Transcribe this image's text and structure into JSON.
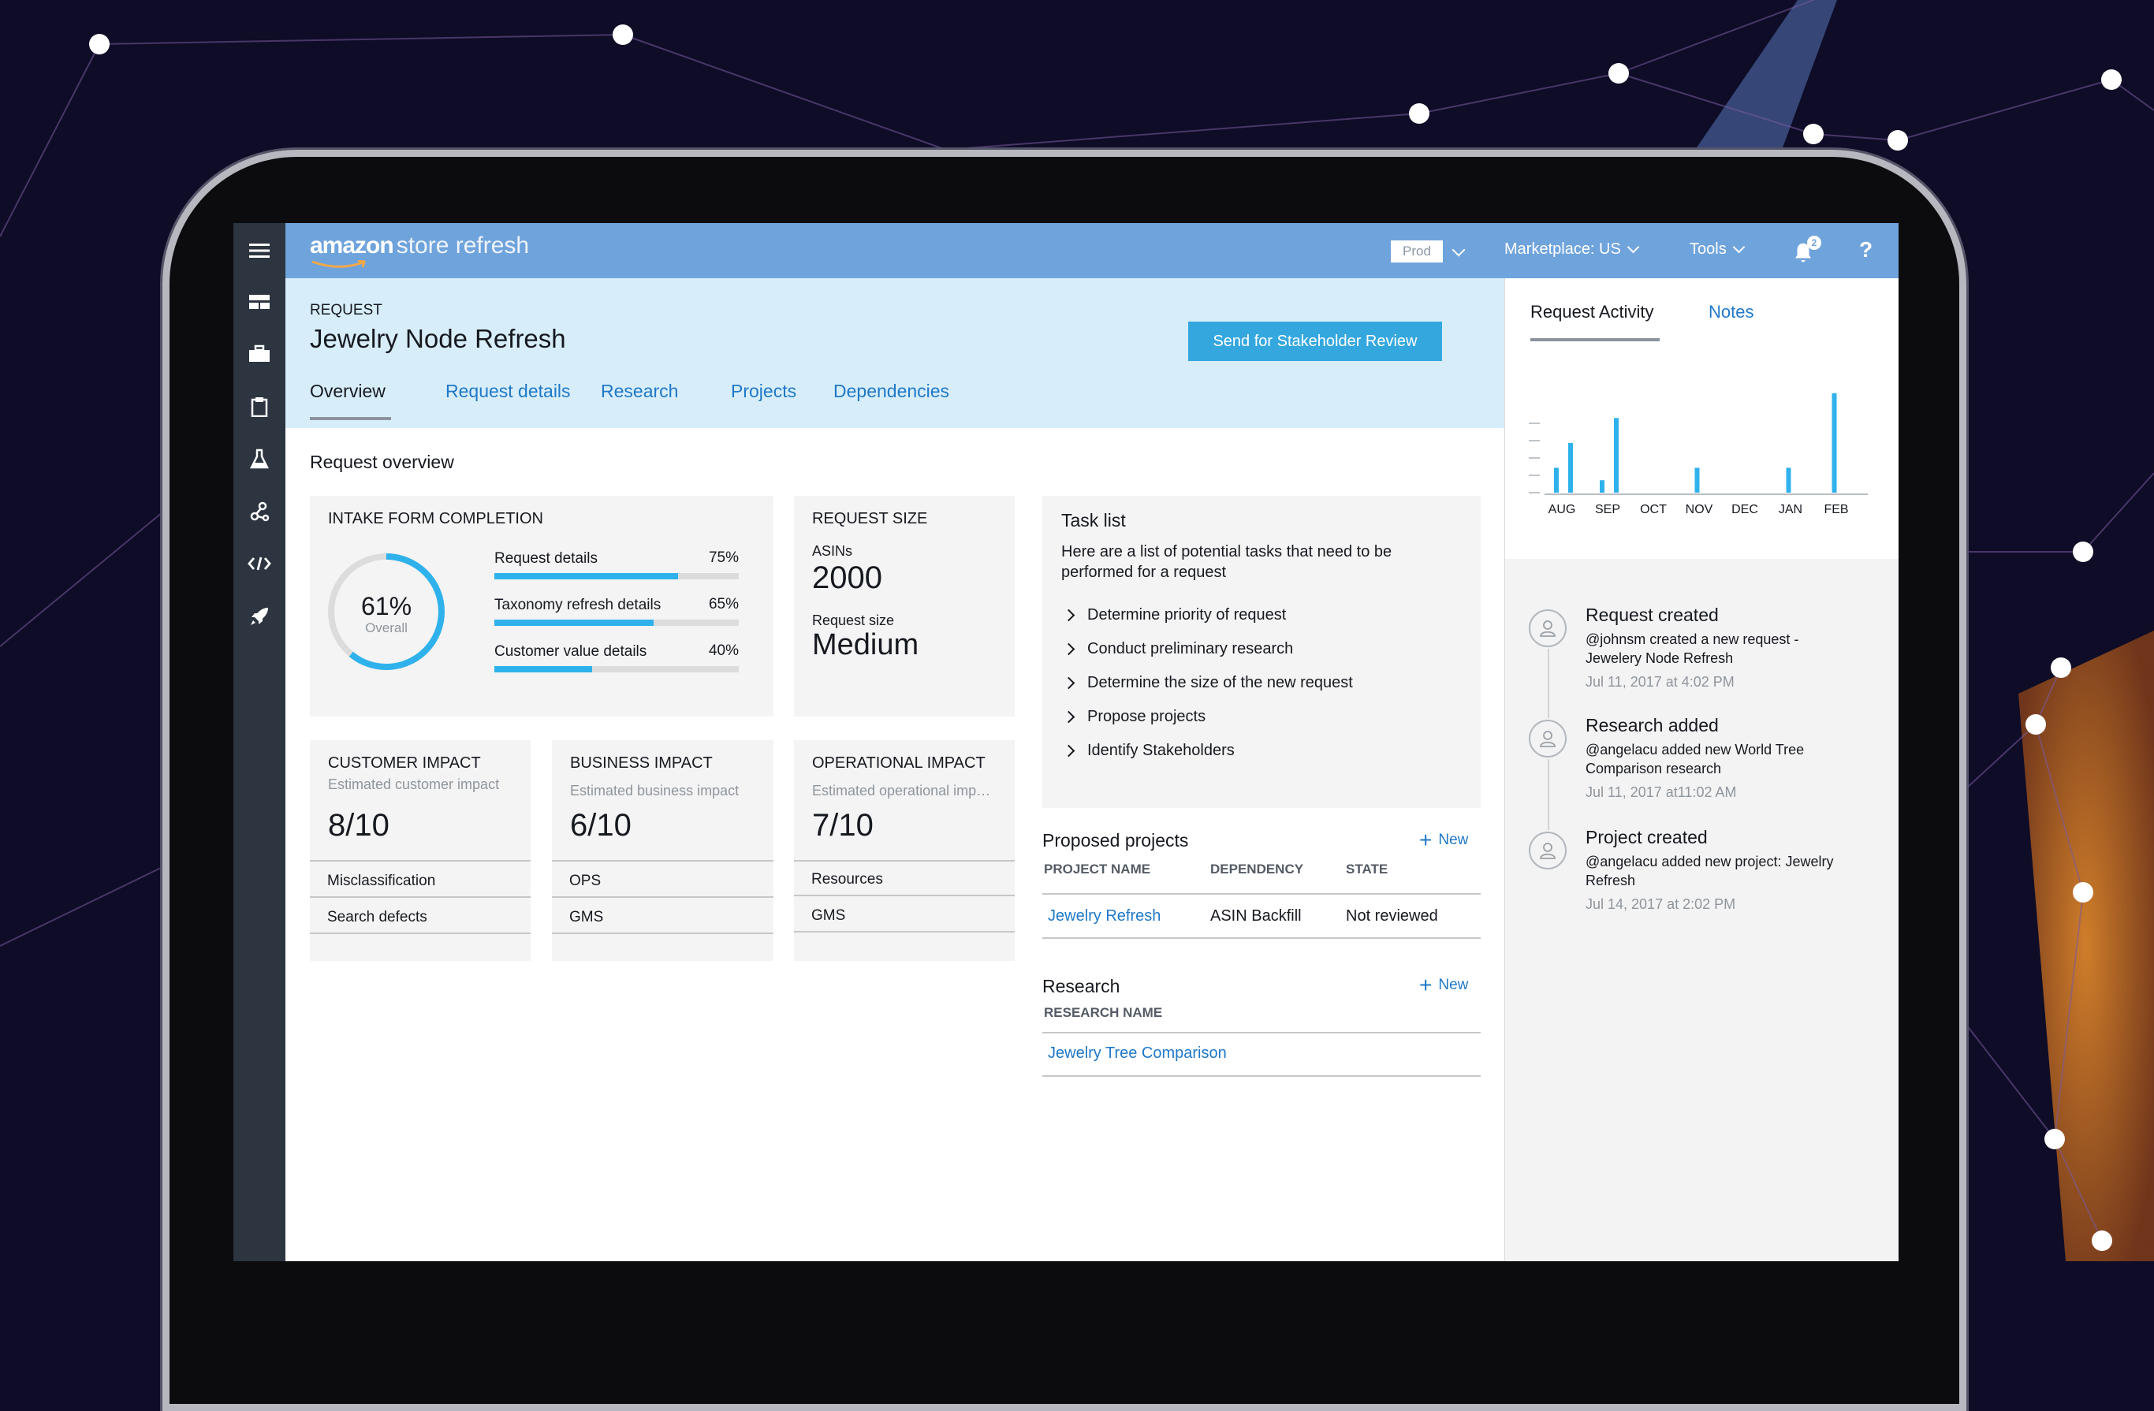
{
  "brand": {
    "logo_text": "amazon",
    "app_name": "store refresh"
  },
  "topnav": {
    "env": "Prod",
    "marketplace": "Marketplace: US",
    "tools": "Tools",
    "notif_count": "2",
    "help": "?"
  },
  "rail_icons": [
    "menu-icon",
    "dashboard-icon",
    "briefcase-icon",
    "clipboard-icon",
    "flask-icon",
    "share-icon",
    "code-icon",
    "rocket-icon"
  ],
  "header": {
    "label": "REQUEST",
    "title": "Jewelry Node Refresh",
    "send_button": "Send for Stakeholder Review"
  },
  "tabs": [
    {
      "label": "Overview",
      "active": true
    },
    {
      "label": "Request details"
    },
    {
      "label": "Research"
    },
    {
      "label": "Projects"
    },
    {
      "label": "Dependencies"
    }
  ],
  "overview": {
    "section_title": "Request overview",
    "intake": {
      "title": "INTAKE FORM COMPLETION",
      "overall_percent": "61%",
      "overall_value": 61,
      "overall_label": "Overall",
      "items": [
        {
          "label": "Request details",
          "percent": "75%",
          "value": 75
        },
        {
          "label": "Taxonomy refresh details",
          "percent": "65%",
          "value": 65
        },
        {
          "label": "Customer value details",
          "percent": "40%",
          "value": 40
        }
      ]
    },
    "request_size": {
      "title": "REQUEST SIZE",
      "asins_label": "ASINs",
      "asins_value": "2000",
      "size_label": "Request size",
      "size_value": "Medium"
    },
    "impacts": [
      {
        "title": "CUSTOMER IMPACT",
        "subtitle": "Estimated customer impact",
        "score": "8/10",
        "rows": [
          "Misclassification",
          "Search defects"
        ]
      },
      {
        "title": "BUSINESS IMPACT",
        "subtitle": "Estimated business impact",
        "score": "6/10",
        "rows": [
          "OPS",
          "GMS"
        ]
      },
      {
        "title": "OPERATIONAL IMPACT",
        "subtitle": "Estimated operational imp…",
        "score": "7/10",
        "rows": [
          "Resources",
          "GMS"
        ]
      }
    ]
  },
  "tasks": {
    "title": "Task list",
    "description": "Here are a list of potential tasks that need to be performed for a request",
    "items": [
      "Determine priority of request",
      "Conduct preliminary research",
      "Determine the size of the new request",
      "Propose projects",
      "Identify Stakeholders"
    ]
  },
  "proposed": {
    "title": "Proposed projects",
    "new_label": "New",
    "columns": [
      "PROJECT NAME",
      "DEPENDENCY",
      "STATE"
    ],
    "rows": [
      [
        "Jewelry Refresh",
        "ASIN Backfill",
        "Not reviewed"
      ]
    ]
  },
  "research": {
    "title": "Research",
    "new_label": "New",
    "column": "RESEARCH NAME",
    "rows": [
      "Jewelry Tree Comparison"
    ]
  },
  "side": {
    "tab_activity": "Request Activity",
    "tab_notes": "Notes"
  },
  "chart_data": {
    "type": "bar",
    "categories": [
      "AUG",
      "SEP",
      "OCT",
      "NOV",
      "DEC",
      "JAN",
      "FEB"
    ],
    "series": [
      {
        "values": [
          [
            2,
            4
          ],
          [
            1,
            6
          ],
          [],
          [
            2
          ],
          [],
          [
            2
          ],
          [
            8
          ]
        ]
      }
    ],
    "ylim": [
      0,
      9
    ],
    "bar_color": "#2fb2ec"
  },
  "activity": [
    {
      "title": "Request created",
      "body": "@johnsm created a new request - Jewelery Node Refresh",
      "date": "Jul 11, 2017 at 4:02 PM"
    },
    {
      "title": "Research added",
      "body": "@angelacu added new World Tree Comparison research",
      "date": "Jul 11, 2017 at11:02 AM"
    },
    {
      "title": "Project created",
      "body": "@angelacu added new project: Jewelry Refresh",
      "date": "Jul 14, 2017 at 2:02 PM"
    }
  ],
  "colors": {
    "accent": "#35a7df",
    "topbar": "#6fa3dc",
    "header_bg": "#d7eefa",
    "rail": "#2c3540",
    "link": "#1f78c8"
  }
}
